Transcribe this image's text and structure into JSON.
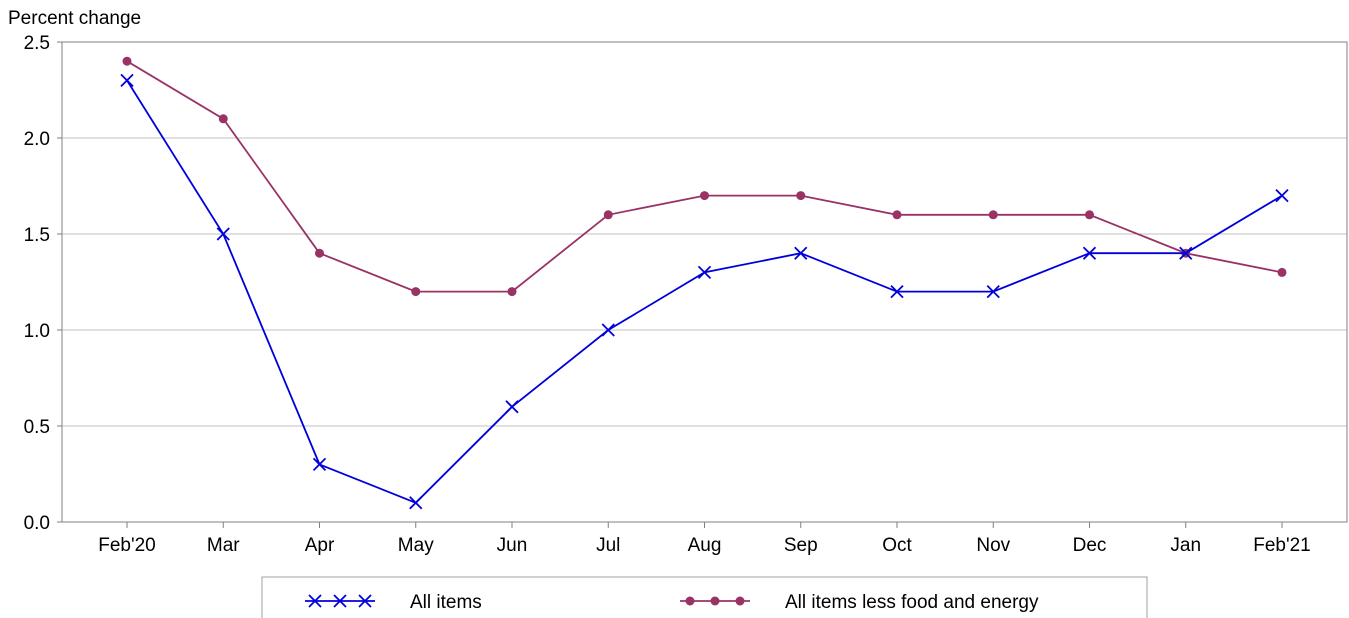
{
  "chart_data": {
    "type": "line",
    "ylabel": "Percent change",
    "ylim": [
      0.0,
      2.5
    ],
    "yticks": [
      "0.0",
      "0.5",
      "1.0",
      "1.5",
      "2.0",
      "2.5"
    ],
    "ytick_values": [
      0.0,
      0.5,
      1.0,
      1.5,
      2.0,
      2.5
    ],
    "grid": true,
    "categories": [
      "Feb'20",
      "Mar",
      "Apr",
      "May",
      "Jun",
      "Jul",
      "Aug",
      "Sep",
      "Oct",
      "Nov",
      "Dec",
      "Jan",
      "Feb'21"
    ],
    "series": [
      {
        "name": "All items",
        "color": "#0000dd",
        "marker": "x",
        "values": [
          2.3,
          1.5,
          0.3,
          0.1,
          0.6,
          1.0,
          1.3,
          1.4,
          1.2,
          1.2,
          1.4,
          1.4,
          1.7
        ]
      },
      {
        "name": "All items less food and energy",
        "color": "#993366",
        "marker": "circle",
        "values": [
          2.4,
          2.1,
          1.4,
          1.2,
          1.2,
          1.6,
          1.7,
          1.7,
          1.6,
          1.6,
          1.6,
          1.4,
          1.3
        ]
      }
    ],
    "legend_position": "bottom"
  }
}
